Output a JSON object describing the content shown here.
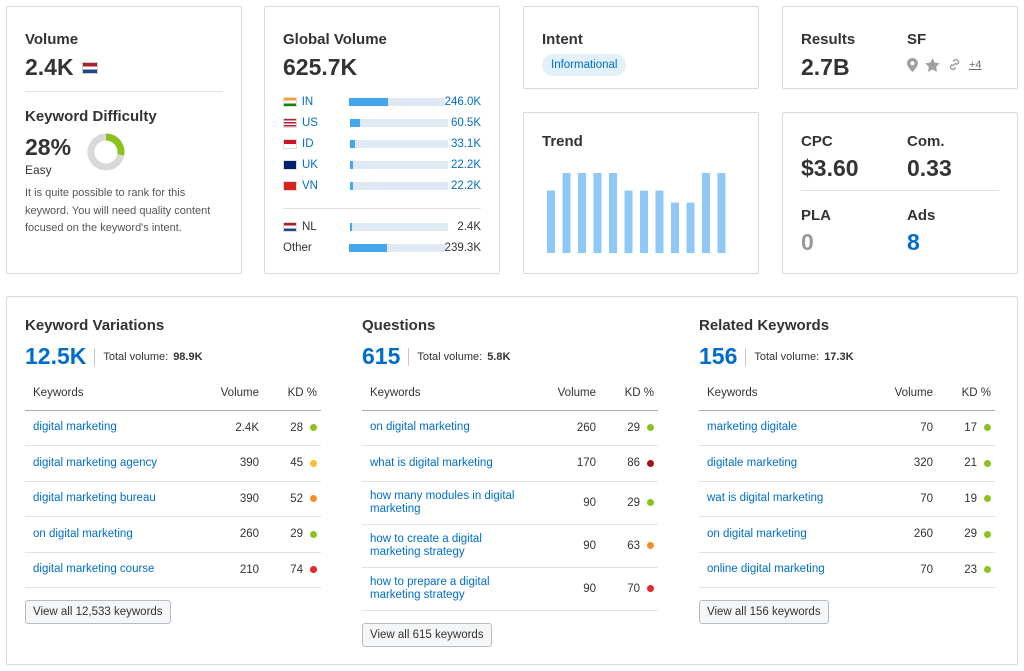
{
  "volume": {
    "label": "Volume",
    "value": "2.4K",
    "flag_icon": "flag-nl-icon",
    "kd_label": "Keyword Difficulty",
    "kd_value": "28%",
    "kd_percent": 28,
    "kd_level": "Easy",
    "kd_color": "#8bc21d",
    "kd_description": "It is quite possible to rank for this keyword. You will need quality content focused on the keyword's intent."
  },
  "global": {
    "label": "Global Volume",
    "value": "625.7K",
    "countries": [
      {
        "code": "IN",
        "value": "246.0K",
        "share": 0.4,
        "flag": "flag-in-icon"
      },
      {
        "code": "US",
        "value": "60.5K",
        "share": 0.1,
        "flag": "flag-us-icon"
      },
      {
        "code": "ID",
        "value": "33.1K",
        "share": 0.05,
        "flag": "flag-id-icon"
      },
      {
        "code": "UK",
        "value": "22.2K",
        "share": 0.035,
        "flag": "flag-uk-icon"
      },
      {
        "code": "VN",
        "value": "22.2K",
        "share": 0.035,
        "flag": "flag-vn-icon"
      }
    ],
    "local": {
      "code": "NL",
      "value": "2.4K",
      "share": 0.01,
      "flag": "flag-nl-icon"
    },
    "other": {
      "code": "Other",
      "value": "239.3K",
      "share": 0.39
    }
  },
  "intent": {
    "label": "Intent",
    "value": "Informational"
  },
  "trend": {
    "label": "Trend",
    "values": [
      0.78,
      1.0,
      1.0,
      1.0,
      1.0,
      0.78,
      0.78,
      0.78,
      0.63,
      0.63,
      1.0,
      1.0
    ],
    "bar_color": "#8ec9f5"
  },
  "results": {
    "label": "Results",
    "value": "2.7B",
    "sf_label": "SF",
    "sf_icons": [
      "location-pin-icon",
      "star-icon",
      "link-icon"
    ],
    "sf_more": "+4"
  },
  "cpc": {
    "cpc_label": "CPC",
    "cpc_value": "$3.60",
    "com_label": "Com.",
    "com_value": "0.33",
    "pla_label": "PLA",
    "pla_value": "0",
    "ads_label": "Ads",
    "ads_value": "8"
  },
  "columns": {
    "headers": {
      "keywords": "Keywords",
      "volume": "Volume",
      "kd": "KD %"
    },
    "total_volume_label": "Total volume:"
  },
  "variations": {
    "title": "Keyword Variations",
    "count": "12.5K",
    "total_volume": "98.9K",
    "rows": [
      {
        "keyword": "digital marketing",
        "volume": "2.4K",
        "kd": "28",
        "color": "#8bc21d"
      },
      {
        "keyword": "digital marketing agency",
        "volume": "390",
        "kd": "45",
        "color": "#f5c22b"
      },
      {
        "keyword": "digital marketing bureau",
        "volume": "390",
        "kd": "52",
        "color": "#f28f24"
      },
      {
        "keyword": "on digital marketing",
        "volume": "260",
        "kd": "29",
        "color": "#8bc21d"
      },
      {
        "keyword": "digital marketing course",
        "volume": "210",
        "kd": "74",
        "color": "#e8262b"
      }
    ],
    "view_all": "View all 12,533 keywords"
  },
  "questions": {
    "title": "Questions",
    "count": "615",
    "total_volume": "5.8K",
    "rows": [
      {
        "keyword": "on digital marketing",
        "volume": "260",
        "kd": "29",
        "color": "#8bc21d"
      },
      {
        "keyword": "what is digital marketing",
        "volume": "170",
        "kd": "86",
        "color": "#a4111e"
      },
      {
        "keyword": "how many modules in digital marketing",
        "volume": "90",
        "kd": "29",
        "color": "#8bc21d"
      },
      {
        "keyword": "how to create a digital marketing strategy",
        "volume": "90",
        "kd": "63",
        "color": "#f28f24"
      },
      {
        "keyword": "how to prepare a digital marketing strategy",
        "volume": "90",
        "kd": "70",
        "color": "#e8262b"
      }
    ],
    "view_all": "View all 615 keywords"
  },
  "related": {
    "title": "Related Keywords",
    "count": "156",
    "total_volume": "17.3K",
    "rows": [
      {
        "keyword": "marketing digitale",
        "volume": "70",
        "kd": "17",
        "color": "#8bc21d"
      },
      {
        "keyword": "digitale marketing",
        "volume": "320",
        "kd": "21",
        "color": "#8bc21d"
      },
      {
        "keyword": "wat is digital marketing",
        "volume": "70",
        "kd": "19",
        "color": "#8bc21d"
      },
      {
        "keyword": "on digital marketing",
        "volume": "260",
        "kd": "29",
        "color": "#8bc21d"
      },
      {
        "keyword": "online digital marketing",
        "volume": "70",
        "kd": "23",
        "color": "#8bc21d"
      }
    ],
    "view_all": "View all 156 keywords"
  }
}
